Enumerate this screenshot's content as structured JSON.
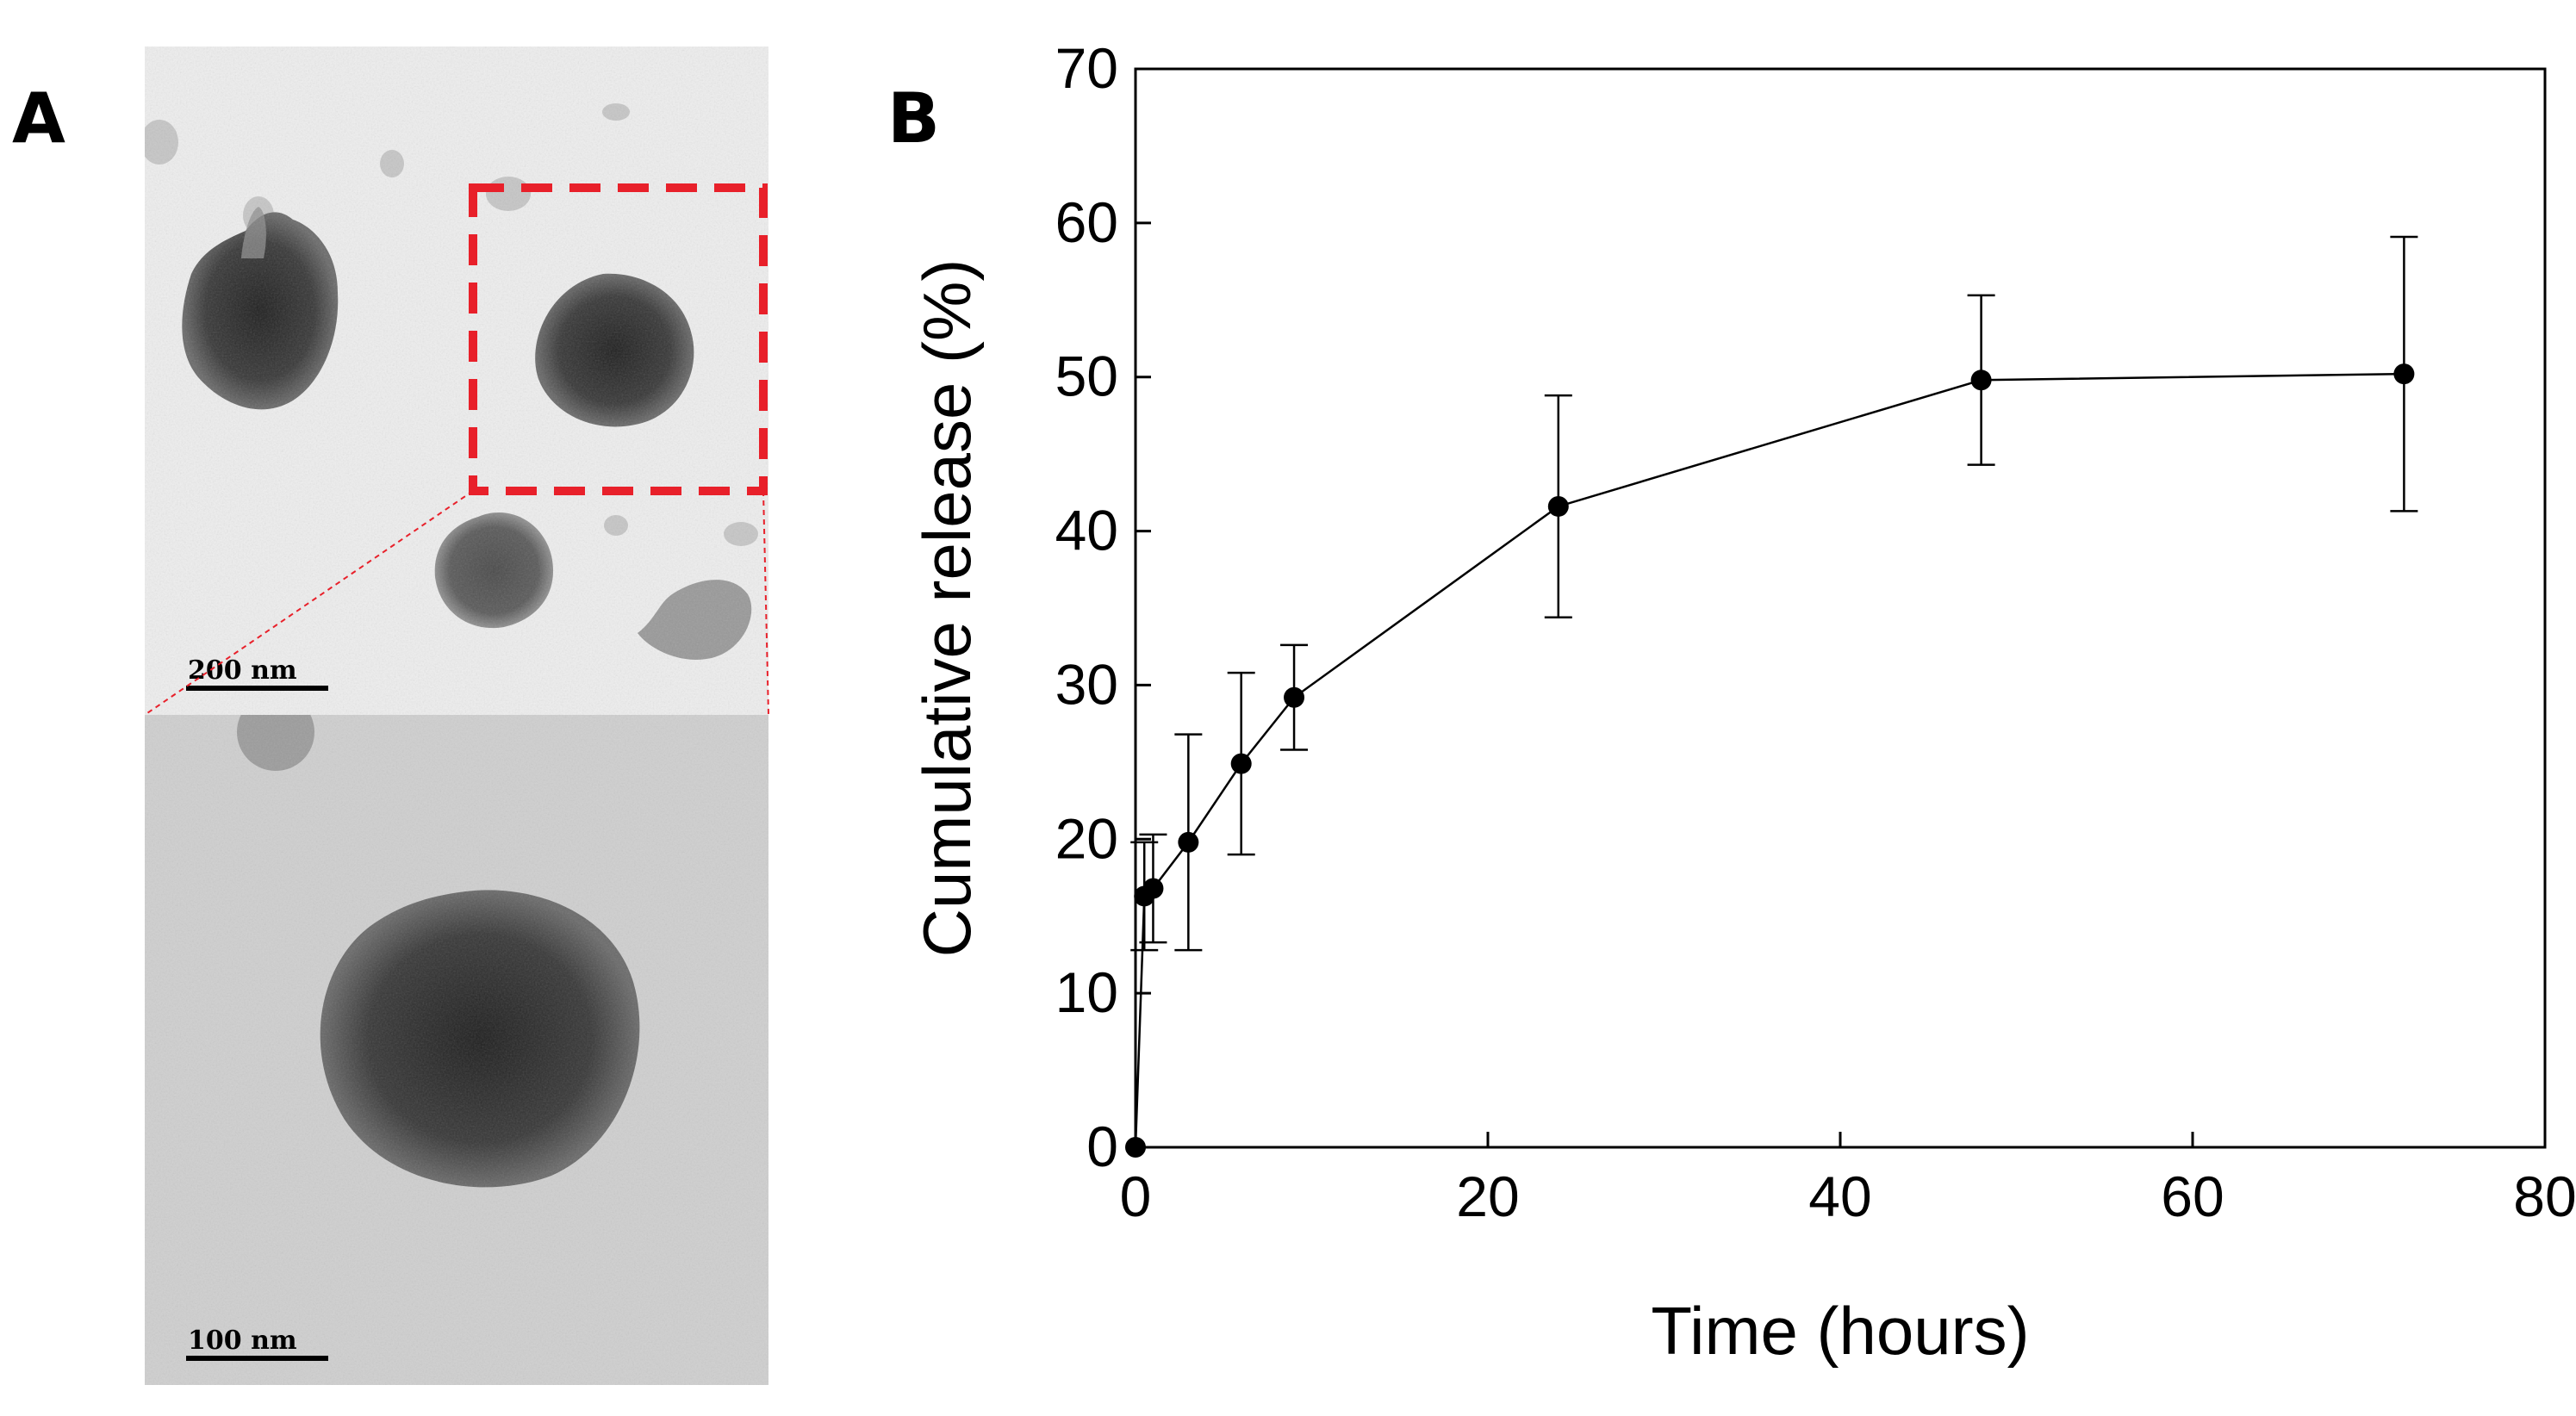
{
  "panel_a": {
    "letter": "A",
    "top_image": {
      "scale_label": "200 nm"
    },
    "bottom_image": {
      "scale_label": "100 nm"
    }
  },
  "panel_b": {
    "letter": "B"
  },
  "chart_data": {
    "type": "line",
    "title": "",
    "xlabel": "Time (hours)",
    "ylabel": "Cumulative release (%)",
    "xlim": [
      0,
      80
    ],
    "ylim": [
      0,
      70
    ],
    "xticks": [
      0,
      20,
      40,
      60,
      80
    ],
    "yticks": [
      0,
      10,
      20,
      30,
      40,
      50,
      60,
      70
    ],
    "grid": false,
    "legend": "none",
    "series": [
      {
        "name": "Cumulative release",
        "color": "#000000",
        "marker": "circle",
        "x": [
          0,
          0.5,
          1,
          3,
          6,
          9,
          24,
          48,
          72
        ],
        "y": [
          0,
          16.3,
          16.8,
          19.8,
          24.9,
          29.2,
          41.6,
          49.8,
          50.2
        ],
        "error": [
          0,
          3.5,
          3.5,
          7.0,
          5.9,
          3.4,
          7.2,
          5.5,
          8.9
        ]
      }
    ]
  },
  "colors": {
    "zoom_box": "#e8202a",
    "micrograph_top_bg": "#eeeeee",
    "micrograph_bottom_bg": "#cfcfcf",
    "particle": "#2a2a2a"
  }
}
